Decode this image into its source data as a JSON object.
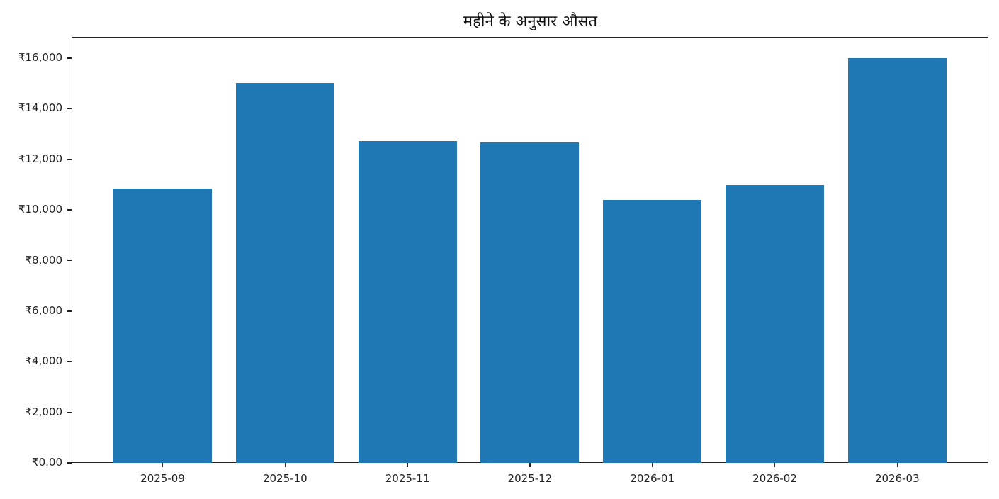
{
  "chart_data": {
    "type": "bar",
    "title": "महीने के अनुसार औसत",
    "xlabel": "",
    "ylabel": "",
    "categories": [
      "2025-09",
      "2025-10",
      "2025-11",
      "2025-12",
      "2026-01",
      "2026-02",
      "2026-03"
    ],
    "values": [
      10850,
      15020,
      12720,
      12670,
      10400,
      10980,
      16000
    ],
    "ylim": [
      0,
      16800
    ],
    "yticks": [
      0,
      2000,
      4000,
      6000,
      8000,
      10000,
      12000,
      14000,
      16000
    ],
    "ytick_labels": [
      "₹0.00",
      "₹2,000",
      "₹4,000",
      "₹6,000",
      "₹8,000",
      "₹10,000",
      "₹12,000",
      "₹14,000",
      "₹16,000"
    ],
    "grid": true,
    "bar_color": "#1f77b4",
    "legend": null
  }
}
